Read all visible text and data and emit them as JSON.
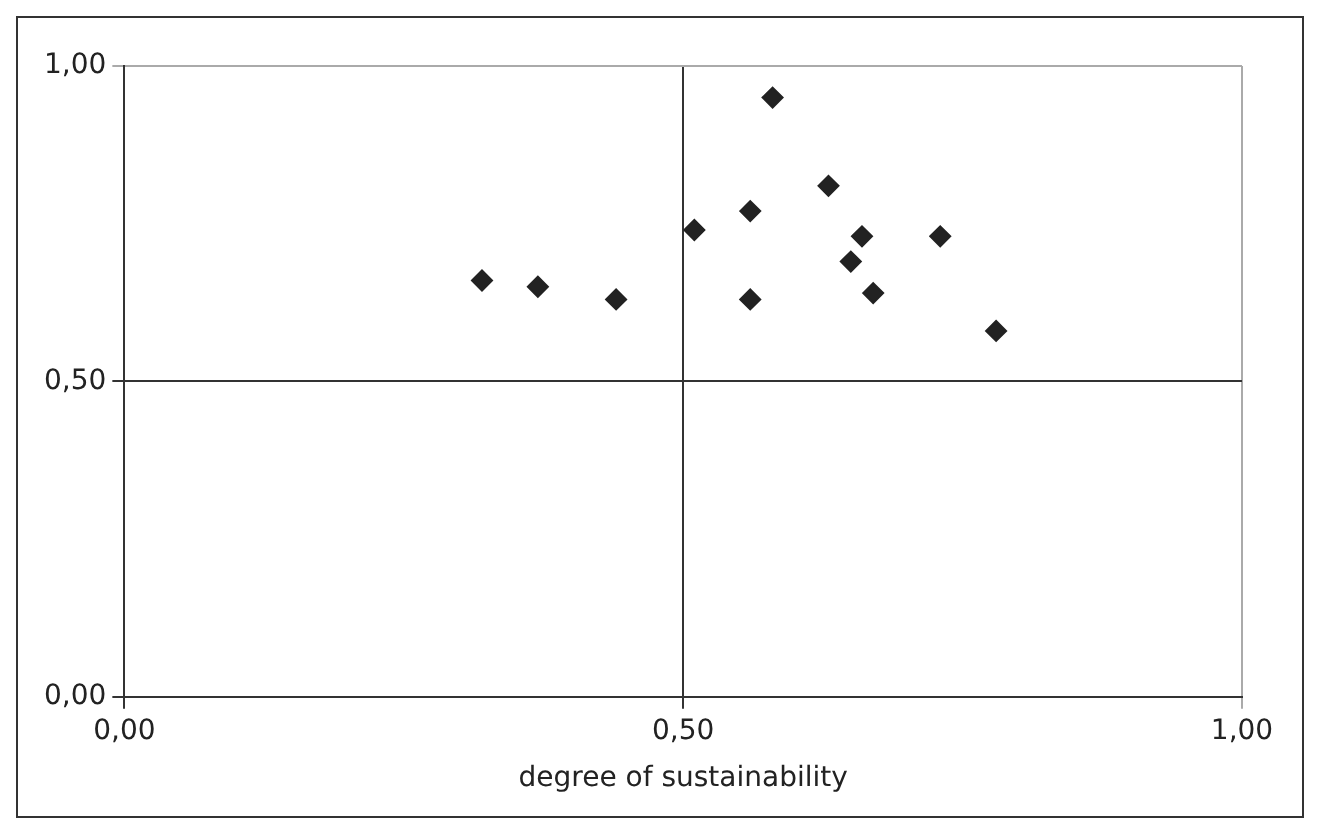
{
  "chart_data": {
    "type": "scatter",
    "xlabel": "degree of sustainability",
    "x": [
      0.32,
      0.37,
      0.44,
      0.51,
      0.56,
      0.56,
      0.58,
      0.63,
      0.65,
      0.66,
      0.67,
      0.73,
      0.78
    ],
    "values": [
      0.66,
      0.65,
      0.63,
      0.74,
      0.63,
      0.77,
      0.95,
      0.81,
      0.69,
      0.73,
      0.64,
      0.73,
      0.58
    ],
    "color": "#222222",
    "marker": "diamond",
    "xlim": [
      0,
      1
    ],
    "ylim": [
      0,
      1
    ],
    "xticks": [
      {
        "value": 0,
        "label": "0,00"
      },
      {
        "value": 0.5,
        "label": "0,50"
      },
      {
        "value": 1,
        "label": "1,00"
      }
    ],
    "yticks": [
      {
        "value": 0,
        "label": "0,00"
      },
      {
        "value": 0.5,
        "label": "0,50"
      },
      {
        "value": 1,
        "label": "1,00"
      }
    ],
    "grid": true,
    "legend": false
  }
}
